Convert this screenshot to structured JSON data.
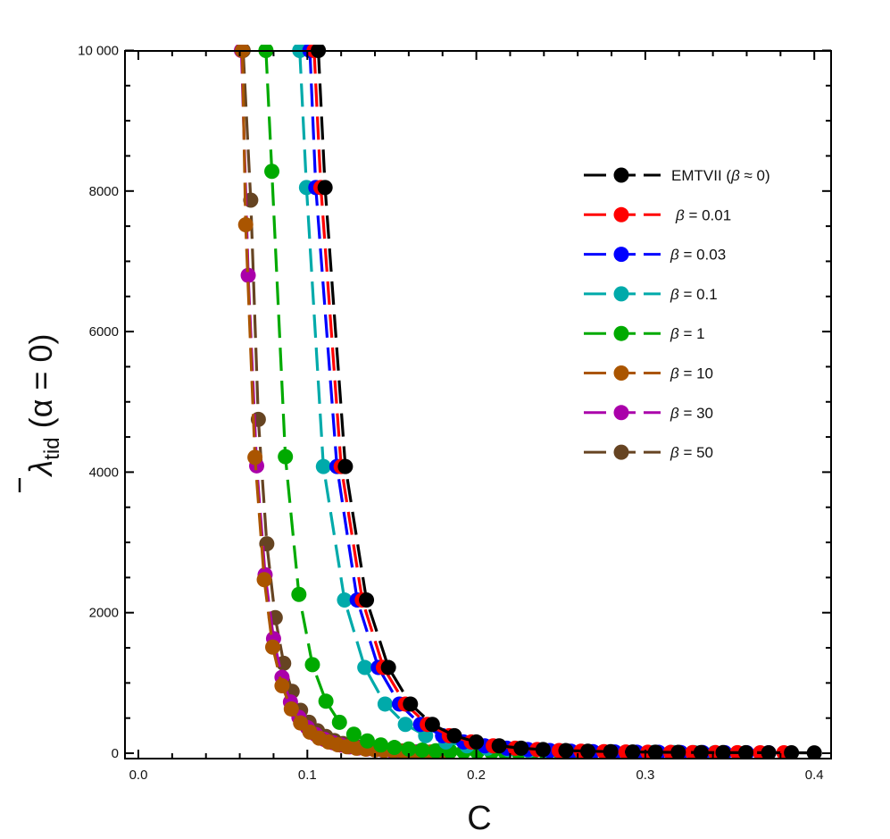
{
  "chart_data": {
    "type": "line",
    "title": "",
    "xlabel": "C",
    "ylabel": "λ̄_tid (α = 0)",
    "ylabel_parts": {
      "symbol": "λ",
      "subscript": "tid",
      "suffix": "(α = 0)"
    },
    "xlim": [
      -0.008,
      0.41
    ],
    "ylim": [
      -80,
      10000
    ],
    "x_ticks": [
      0.0,
      0.1,
      0.2,
      0.3,
      0.4
    ],
    "x_tick_labels": [
      "0.0",
      "0.1",
      "0.2",
      "0.3",
      "0.4"
    ],
    "y_ticks": [
      0,
      2000,
      4000,
      6000,
      8000,
      10000
    ],
    "y_tick_labels": [
      "0",
      "2000",
      "4000",
      "6000",
      "8000",
      "10 000"
    ],
    "grid": false,
    "legend_position": "upper right",
    "line_style": "dashed with filled circle markers",
    "series": [
      {
        "name": "EMTVII (β ≈ 0)",
        "color": "#000000",
        "x": [
          0.1065,
          0.1105,
          0.1225,
          0.135,
          0.148,
          0.161,
          0.174,
          0.187,
          0.2,
          0.2135,
          0.2265,
          0.2395,
          0.253,
          0.266,
          0.2795,
          0.2925,
          0.306,
          0.3195,
          0.333,
          0.346,
          0.3595,
          0.373,
          0.3865,
          0.4
        ],
        "y": [
          10000,
          8050,
          4080,
          2180,
          1220,
          700,
          410,
          250,
          160,
          105,
          72,
          52,
          38,
          29,
          23,
          18,
          15,
          12,
          10,
          9,
          8,
          7,
          6,
          5
        ]
      },
      {
        "name": "β = 0.01",
        "color": "#ff0000",
        "x": [
          0.104,
          0.108,
          0.12,
          0.1325,
          0.145,
          0.158,
          0.171,
          0.184,
          0.197,
          0.21,
          0.223,
          0.236,
          0.249,
          0.262,
          0.2755,
          0.2885,
          0.3015,
          0.315,
          0.328,
          0.3415,
          0.3545,
          0.368,
          0.382
        ],
        "y": [
          10000,
          8050,
          4080,
          2180,
          1220,
          700,
          410,
          250,
          160,
          105,
          72,
          52,
          38,
          29,
          23,
          18,
          15,
          12,
          10,
          9,
          8,
          7,
          6
        ]
      },
      {
        "name": "β = 0.03",
        "color": "#0000ff",
        "x": [
          0.1015,
          0.105,
          0.1175,
          0.1295,
          0.142,
          0.1545,
          0.167,
          0.18,
          0.1925,
          0.205,
          0.218,
          0.2305,
          0.2435,
          0.256,
          0.269,
          0.282,
          0.295,
          0.308,
          0.321,
          0.334,
          0.347,
          0.36,
          0.373
        ],
        "y": [
          10000,
          8050,
          4080,
          2180,
          1220,
          700,
          410,
          250,
          160,
          105,
          72,
          52,
          38,
          29,
          23,
          18,
          15,
          12,
          10,
          9,
          8,
          7,
          6
        ]
      },
      {
        "name": "β = 0.1",
        "color": "#00aaaa",
        "x": [
          0.0955,
          0.0995,
          0.1095,
          0.122,
          0.134,
          0.146,
          0.158,
          0.17,
          0.182,
          0.1945,
          0.2065,
          0.219,
          0.231,
          0.243,
          0.2555,
          0.2675,
          0.28,
          0.2925,
          0.3045,
          0.317,
          0.329,
          0.341
        ],
        "y": [
          10000,
          8050,
          4080,
          2180,
          1220,
          700,
          410,
          250,
          160,
          105,
          72,
          52,
          38,
          29,
          23,
          18,
          15,
          12,
          10,
          9,
          8,
          7
        ]
      },
      {
        "name": "β = 1",
        "color": "#00aa00",
        "x": [
          0.0755,
          0.079,
          0.087,
          0.095,
          0.103,
          0.111,
          0.119,
          0.1275,
          0.1355,
          0.1435,
          0.1515,
          0.16,
          0.168,
          0.176,
          0.1845,
          0.1925,
          0.2005,
          0.209,
          0.217,
          0.225,
          0.233,
          0.241,
          0.2495,
          0.2575,
          0.2655
        ],
        "y": [
          10000,
          8280,
          4220,
          2260,
          1260,
          740,
          440,
          270,
          175,
          118,
          82,
          60,
          45,
          35,
          28,
          23,
          19,
          16,
          14,
          12,
          11,
          10,
          9,
          8,
          7
        ]
      },
      {
        "name": "β = 10",
        "color": "#aa5500",
        "x": [
          0.0615,
          0.0635,
          0.069,
          0.0745,
          0.0795,
          0.085,
          0.0905,
          0.096,
          0.1015,
          0.107,
          0.1125,
          0.118,
          0.1235,
          0.129,
          0.1345,
          0.14,
          0.1455,
          0.151,
          0.1565,
          0.162,
          0.1675,
          0.173,
          0.1785,
          0.184
        ],
        "y": [
          10000,
          7520,
          4210,
          2470,
          1510,
          960,
          630,
          430,
          300,
          215,
          160,
          120,
          92,
          72,
          58,
          47,
          39,
          33,
          28,
          24,
          21,
          18,
          16,
          14
        ]
      },
      {
        "name": "β = 30",
        "color": "#aa00aa",
        "x": [
          0.061,
          0.065,
          0.07,
          0.075,
          0.08,
          0.085,
          0.09,
          0.095,
          0.1,
          0.105,
          0.11,
          0.115,
          0.12,
          0.125,
          0.13,
          0.135,
          0.14,
          0.145,
          0.15,
          0.155,
          0.16,
          0.165,
          0.17
        ],
        "y": [
          10000,
          6800,
          4090,
          2540,
          1630,
          1080,
          730,
          510,
          365,
          265,
          197,
          150,
          116,
          91,
          73,
          59,
          48,
          40,
          34,
          29,
          25,
          21,
          18
        ]
      },
      {
        "name": "β = 50",
        "color": "#664422",
        "x": [
          0.062,
          0.0665,
          0.071,
          0.076,
          0.081,
          0.086,
          0.091,
          0.096,
          0.101,
          0.106,
          0.111,
          0.116,
          0.121,
          0.126,
          0.131,
          0.136,
          0.141,
          0.146,
          0.151,
          0.156,
          0.161,
          0.166,
          0.17
        ],
        "y": [
          10000,
          7870,
          4750,
          2980,
          1930,
          1280,
          880,
          610,
          440,
          320,
          238,
          180,
          138,
          108,
          86,
          69,
          56,
          46,
          38,
          32,
          27,
          23,
          20
        ]
      }
    ]
  },
  "legend": {
    "items": [
      {
        "label": "EMTVII (β ≈ 0)",
        "color": "#000000"
      },
      {
        "label": "β = 0.01",
        "color": "#ff0000"
      },
      {
        "label": "β = 0.03",
        "color": "#0000ff"
      },
      {
        "label": "β = 0.1",
        "color": "#00aaaa"
      },
      {
        "label": "β = 1",
        "color": "#00aa00"
      },
      {
        "label": "β = 10",
        "color": "#aa5500"
      },
      {
        "label": "β = 30",
        "color": "#aa00aa"
      },
      {
        "label": "β = 50",
        "color": "#664422"
      }
    ]
  }
}
